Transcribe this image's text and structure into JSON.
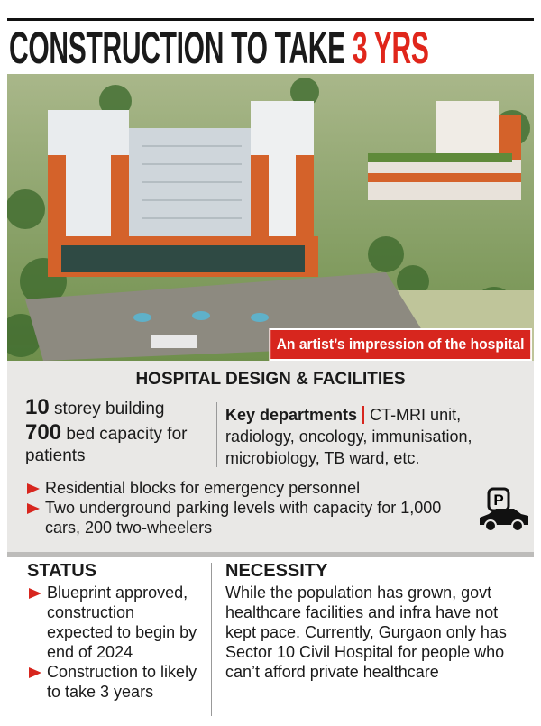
{
  "header": {
    "title": "CONSTRUCTION TO TAKE",
    "title_highlight": "3 YRS"
  },
  "image": {
    "caption": "An artist’s impression of the hospital"
  },
  "facilities": {
    "heading": "HOSPITAL DESIGN & FACILITIES",
    "stats": [
      {
        "number": "10",
        "text": "storey building"
      },
      {
        "number": "700",
        "text": "bed capacity for patients"
      }
    ],
    "departments_label": "Key departments",
    "departments": "CT-MRI unit, radiology, oncology, immunisation, microbiology, TB ward, etc.",
    "bullets": [
      "Residential blocks for emergency personnel",
      "Two underground parking levels with capacity for 1,000 cars, 200 two-wheelers"
    ],
    "parking_icon": "P"
  },
  "status": {
    "heading": "STATUS",
    "bullets": [
      "Blueprint approved, construction expected to begin by end of 2024",
      "Construction to likely to take 3 years"
    ]
  },
  "necessity": {
    "heading": "NECESSITY",
    "text": "While the population has grown, govt healthcare facilities and infra have not kept pace. Currently, Gurgaon only has Sector 10 Civil Hospital for people who can’t afford private healthcare"
  }
}
